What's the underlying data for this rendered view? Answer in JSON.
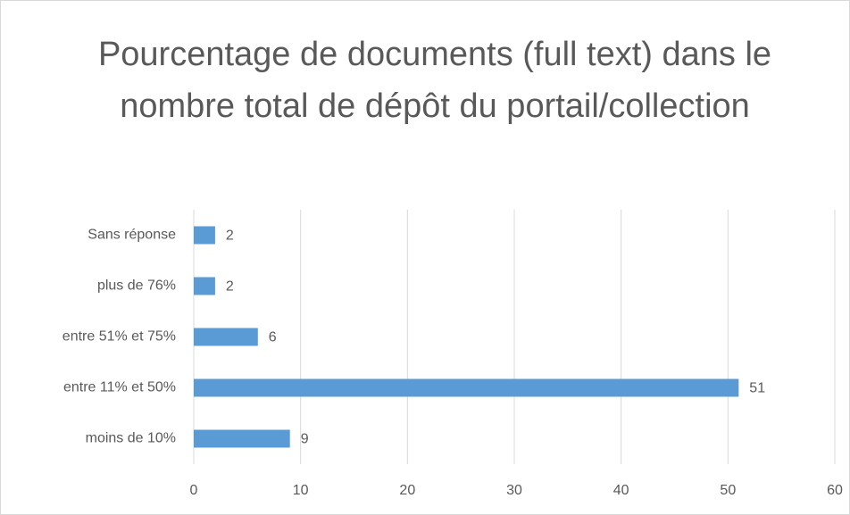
{
  "chart_data": {
    "type": "barh",
    "title": "Pourcentage de documents (full text) dans le nombre total de dépôt du portail/collection",
    "categories": [
      "Sans réponse",
      "plus de 76%",
      "entre 51% et 75%",
      "entre 11% et 50%",
      "moins de 10%"
    ],
    "values": [
      2,
      2,
      6,
      51,
      9
    ],
    "color": "#5b9bd5",
    "xlim": [
      0,
      60
    ],
    "xticks": [
      0,
      10,
      20,
      30,
      40,
      50,
      60
    ],
    "grid": true
  }
}
